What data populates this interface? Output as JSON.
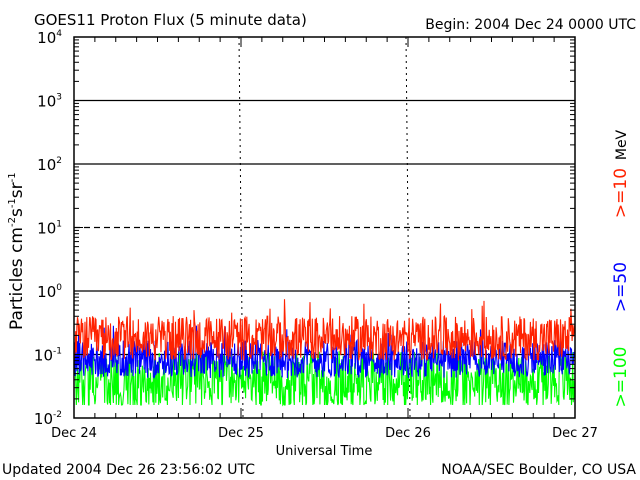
{
  "chart_data": {
    "type": "line",
    "title": "GOES11 Proton Flux (5 minute data)",
    "begin_label": "Begin: 2004 Dec 24 0000 UTC",
    "ylabel_main": "Particles cm",
    "ylabel_exp1": "-2",
    "ylabel_s": "s",
    "ylabel_exp2": "-1",
    "ylabel_sr": "sr",
    "ylabel_exp3": "-1",
    "xlabel": "Universal Time",
    "updated": "Updated 2004 Dec 26 23:56:02 UTC",
    "credit": "NOAA/SEC Boulder, CO USA",
    "units_label": "MeV",
    "y_scale": "log",
    "ylim": [
      0.01,
      10000
    ],
    "y_ticks": [
      {
        "base": "10",
        "exp": "-2"
      },
      {
        "base": "10",
        "exp": "-1"
      },
      {
        "base": "10",
        "exp": "0"
      },
      {
        "base": "10",
        "exp": "1"
      },
      {
        "base": "10",
        "exp": "2"
      },
      {
        "base": "10",
        "exp": "3"
      },
      {
        "base": "10",
        "exp": "4"
      }
    ],
    "x_ticks": [
      "Dec 24",
      "Dec 25",
      "Dec 26",
      "Dec 27"
    ],
    "xlim_days": [
      0,
      3
    ],
    "reference_lines": [
      {
        "value": 10,
        "style": "dashed"
      }
    ],
    "series": [
      {
        "name": ">=10",
        "color": "#ff2200",
        "median": 0.18,
        "spread": 0.35,
        "peak": 0.75
      },
      {
        "name": ">=50",
        "color": "#0000ff",
        "median": 0.085,
        "spread": 0.3,
        "peak": 0.3
      },
      {
        "name": ">=100",
        "color": "#00ff00",
        "median": 0.04,
        "spread": 0.45,
        "peak": 0.1
      }
    ],
    "samples_per_day": 288
  }
}
